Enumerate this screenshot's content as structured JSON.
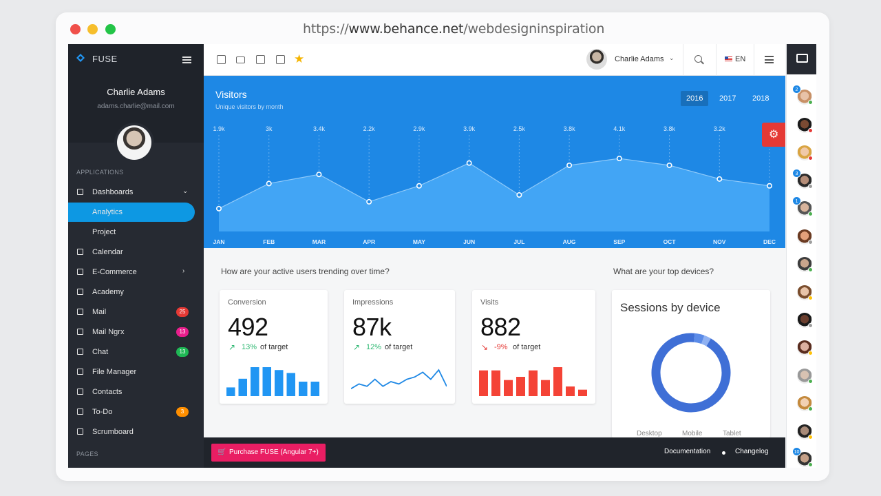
{
  "browser": {
    "url_prefix": "https://",
    "url_domain": "www.behance.net",
    "url_path": "/webdesigninspiration"
  },
  "sidebar": {
    "brand": "FUSE",
    "user_name": "Charlie Adams",
    "user_email": "adams.charlie@mail.com",
    "section_applications": "APPLICATIONS",
    "section_pages": "PAGES",
    "items": [
      {
        "label": "Dashboards",
        "icon": "dashboard-icon",
        "chevron": "⌄"
      },
      {
        "label": "Analytics",
        "active": true
      },
      {
        "label": "Project"
      },
      {
        "label": "Calendar",
        "icon": "calendar-icon"
      },
      {
        "label": "E-Commerce",
        "icon": "cart-icon",
        "chevron": "›"
      },
      {
        "label": "Academy",
        "icon": "school-icon"
      },
      {
        "label": "Mail",
        "icon": "mail-icon",
        "badge": "25",
        "badge_color": "#e53935"
      },
      {
        "label": "Mail Ngrx",
        "icon": "mail-icon",
        "badge": "13",
        "badge_color": "#e91e8c"
      },
      {
        "label": "Chat",
        "icon": "chat-icon",
        "badge": "13",
        "badge_color": "#1fb855"
      },
      {
        "label": "File Manager",
        "icon": "folder-icon"
      },
      {
        "label": "Contacts",
        "icon": "contacts-icon"
      },
      {
        "label": "To-Do",
        "icon": "checkbox-icon",
        "badge": "3",
        "badge_color": "#ff8f00"
      },
      {
        "label": "Scrumboard",
        "icon": "board-icon"
      }
    ]
  },
  "toolbar": {
    "shortcuts": [
      "calendar-icon",
      "mail-icon",
      "contacts-icon",
      "checkbox-icon",
      "star-icon"
    ],
    "user_name": "Charlie Adams",
    "caret": "⌄",
    "language": "EN"
  },
  "visitors": {
    "title": "Visitors",
    "subtitle": "Unique visitors by month",
    "years": [
      "2016",
      "2017",
      "2018"
    ],
    "selected_year": "2016"
  },
  "chart_data": {
    "type": "area",
    "title": "Visitors",
    "subtitle": "Unique visitors by month",
    "categories": [
      "JAN",
      "FEB",
      "MAR",
      "APR",
      "MAY",
      "JUN",
      "JUL",
      "AUG",
      "SEP",
      "OCT",
      "NOV",
      "DEC"
    ],
    "values": [
      1.9,
      3.0,
      3.4,
      2.2,
      2.9,
      3.9,
      2.5,
      3.8,
      4.1,
      3.8,
      3.2,
      2.9
    ],
    "labels": [
      "1.9k",
      "3k",
      "3.4k",
      "2.2k",
      "2.9k",
      "3.9k",
      "2.5k",
      "3.8k",
      "4.1k",
      "3.8k",
      "3.2k",
      ""
    ],
    "ylim": [
      1.2,
      4.6
    ],
    "grid": false,
    "color": "#42a5f5"
  },
  "overview": {
    "question_users": "How are your active users trending over time?",
    "question_devices": "What are your top devices?"
  },
  "cards": [
    {
      "title": "Conversion",
      "value": "492",
      "arrow": "↗",
      "percent": "13%",
      "target": "of target",
      "trend_color": "#2eb872",
      "chart_type": "bar",
      "color": "#2196f3",
      "values": [
        3,
        6,
        10,
        10,
        9,
        8,
        5,
        5
      ]
    },
    {
      "title": "Impressions",
      "value": "87k",
      "arrow": "↗",
      "percent": "12%",
      "target": "of target",
      "trend_color": "#2eb872",
      "chart_type": "line",
      "color": "#1e88e5",
      "values": [
        2,
        4,
        3,
        6,
        3,
        5,
        4,
        6,
        7,
        9,
        6,
        10,
        3
      ]
    },
    {
      "title": "Visits",
      "value": "882",
      "arrow": "↘",
      "percent": "-9%",
      "target": "of target",
      "trend_color": "#e53935",
      "chart_type": "bar",
      "color": "#f44336",
      "values": [
        8,
        8,
        5,
        6,
        8,
        5,
        9,
        3,
        2
      ]
    }
  ],
  "sessions": {
    "title": "Sessions by device",
    "legend": [
      "Desktop",
      "Mobile",
      "Tablet"
    ],
    "values": [
      0.93,
      0.04,
      0.03
    ],
    "colors": [
      "#3f6fd6",
      "#5b8be8",
      "#8fb1f2"
    ]
  },
  "footer": {
    "purchase_label": "Purchase FUSE (Angular 7+)",
    "documentation": "Documentation",
    "changelog": "Changelog"
  },
  "contacts": [
    {
      "count": "2",
      "status": "#4caf50",
      "skin": "#e8c2a8",
      "hair": "#c89066"
    },
    {
      "count": "",
      "status": "#e53935",
      "skin": "#7a4a33",
      "hair": "#1b1b1b"
    },
    {
      "count": "",
      "status": "#e53935",
      "skin": "#f0c9a8",
      "hair": "#d9a441"
    },
    {
      "count": "3",
      "status": "#9e9e9e",
      "skin": "#b58d78",
      "hair": "#2a2a2a"
    },
    {
      "count": "1",
      "status": "#4caf50",
      "skin": "#d8b49c",
      "hair": "#555"
    },
    {
      "count": "",
      "status": "#9e9e9e",
      "skin": "#e3a07a",
      "hair": "#6b3b22"
    },
    {
      "count": "",
      "status": "#4caf50",
      "skin": "#c9a58c",
      "hair": "#3d3d3d"
    },
    {
      "count": "",
      "status": "#ffc107",
      "skin": "#e8c4a9",
      "hair": "#7a4d2d"
    },
    {
      "count": "",
      "status": "#9e9e9e",
      "skin": "#6a3e2e",
      "hair": "#1a1a1a"
    },
    {
      "count": "",
      "status": "#ffc107",
      "skin": "#dcb0a0",
      "hair": "#5a2d1f"
    },
    {
      "count": "",
      "status": "#4caf50",
      "skin": "#d8c2b2",
      "hair": "#999"
    },
    {
      "count": "",
      "status": "#4caf50",
      "skin": "#f2d1b3",
      "hair": "#c48a3d"
    },
    {
      "count": "",
      "status": "#ffc107",
      "skin": "#a88a78",
      "hair": "#222"
    },
    {
      "count": "10",
      "status": "#4caf50",
      "skin": "#c4a088",
      "hair": "#333"
    }
  ]
}
